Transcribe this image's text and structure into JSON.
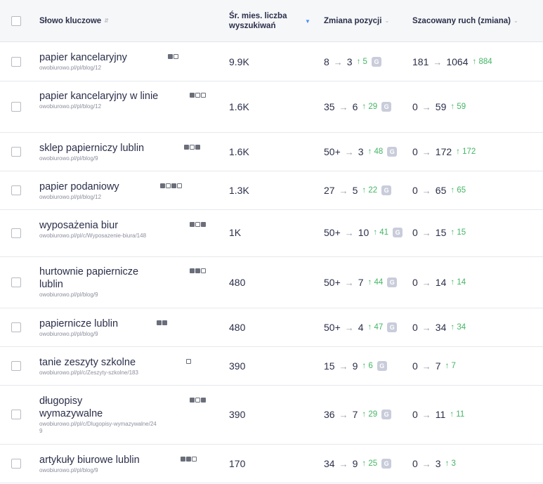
{
  "header": {
    "keyword": "Słowo kluczowe",
    "volume_line1": "Śr. mies. liczba",
    "volume_line2": "wyszukiwań",
    "position": "Zmiana pozycji",
    "traffic": "Szacowany ruch (zmiana)"
  },
  "arrow": "→",
  "gbadge": "G",
  "rows": [
    {
      "keyword": "papier kancelaryjny",
      "url": "owobiurowo.pl/pl/blog/12",
      "volume": "9.9K",
      "pos_from": "8",
      "pos_to": "3",
      "pos_delta": "5",
      "traffic_from": "181",
      "traffic_to": "1064",
      "traffic_delta": "884"
    },
    {
      "keyword": "papier kancelaryjny w linie",
      "url": "owobiurowo.pl/pl/blog/12",
      "volume": "1.6K",
      "pos_from": "35",
      "pos_to": "6",
      "pos_delta": "29",
      "traffic_from": "0",
      "traffic_to": "59",
      "traffic_delta": "59"
    },
    {
      "keyword": "sklep papierniczy lublin",
      "url": "owobiurowo.pl/pl/blog/9",
      "volume": "1.6K",
      "pos_from": "50+",
      "pos_to": "3",
      "pos_delta": "48",
      "traffic_from": "0",
      "traffic_to": "172",
      "traffic_delta": "172"
    },
    {
      "keyword": "papier podaniowy",
      "url": "owobiurowo.pl/pl/blog/12",
      "volume": "1.3K",
      "pos_from": "27",
      "pos_to": "5",
      "pos_delta": "22",
      "traffic_from": "0",
      "traffic_to": "65",
      "traffic_delta": "65"
    },
    {
      "keyword": "wyposażenia biur",
      "url": "owobiurowo.pl/pl/c/Wyposazenie-biura/148",
      "volume": "1K",
      "pos_from": "50+",
      "pos_to": "10",
      "pos_delta": "41",
      "traffic_from": "0",
      "traffic_to": "15",
      "traffic_delta": "15"
    },
    {
      "keyword": "hurtownie papiernicze lublin",
      "url": "owobiurowo.pl/pl/blog/9",
      "volume": "480",
      "pos_from": "50+",
      "pos_to": "7",
      "pos_delta": "44",
      "traffic_from": "0",
      "traffic_to": "14",
      "traffic_delta": "14"
    },
    {
      "keyword": "papiernicze lublin",
      "url": "owobiurowo.pl/pl/blog/9",
      "volume": "480",
      "pos_from": "50+",
      "pos_to": "4",
      "pos_delta": "47",
      "traffic_from": "0",
      "traffic_to": "34",
      "traffic_delta": "34"
    },
    {
      "keyword": "tanie zeszyty szkolne",
      "url": "owobiurowo.pl/pl/c/Zeszyty-szkolne/183",
      "volume": "390",
      "pos_from": "15",
      "pos_to": "9",
      "pos_delta": "6",
      "traffic_from": "0",
      "traffic_to": "7",
      "traffic_delta": "7"
    },
    {
      "keyword": "długopisy wymazywalne",
      "url": "owobiurowo.pl/pl/c/Dlugopisy-wymazywalne/249",
      "volume": "390",
      "pos_from": "36",
      "pos_to": "7",
      "pos_delta": "29",
      "traffic_from": "0",
      "traffic_to": "11",
      "traffic_delta": "11"
    },
    {
      "keyword": "artykuły biurowe lublin",
      "url": "owobiurowo.pl/pl/blog/9",
      "volume": "170",
      "pos_from": "34",
      "pos_to": "9",
      "pos_delta": "25",
      "traffic_from": "0",
      "traffic_to": "3",
      "traffic_delta": "3"
    }
  ]
}
